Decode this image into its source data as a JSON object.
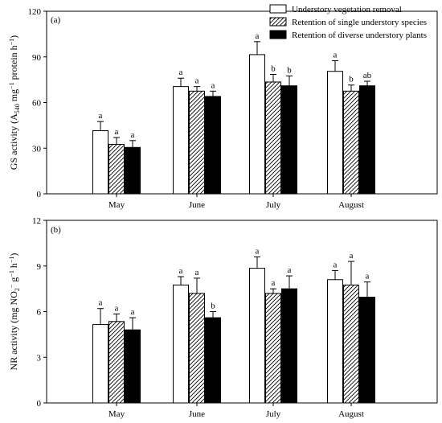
{
  "legend": {
    "items": [
      {
        "label": "Understory vegetation removal",
        "pattern": "open"
      },
      {
        "label": "Retention of single understory species",
        "pattern": "hatched"
      },
      {
        "label": "Retention of diverse understory plants",
        "pattern": "solid"
      }
    ],
    "placement": "top-right"
  },
  "chart_data": [
    {
      "type": "bar",
      "panel_label": "(a)",
      "ylabel_main": "GS activity (A",
      "ylabel_sub": "540",
      "ylabel_rest": " mg",
      "ylabel_sup": "−1",
      "ylabel_tail": " protein h",
      "ylabel_sup2": "−1",
      "ylabel_close": ")",
      "categories": [
        "May",
        "June",
        "July",
        "August"
      ],
      "ylim": [
        0,
        120
      ],
      "yticks": [
        0,
        30,
        60,
        90,
        120
      ],
      "series": [
        {
          "name": "Understory vegetation removal",
          "values": [
            41.5,
            70.5,
            91.5,
            80.5
          ],
          "errors": [
            6.0,
            5.5,
            8.5,
            7.0
          ],
          "letters": [
            "a",
            "a",
            "a",
            "a"
          ]
        },
        {
          "name": "Retention of single understory species",
          "values": [
            32.5,
            67.5,
            73.5,
            67.5
          ],
          "errors": [
            4.5,
            3.0,
            5.0,
            4.0
          ],
          "letters": [
            "a",
            "a",
            "b",
            "b"
          ]
        },
        {
          "name": "Retention of diverse understory plants",
          "values": [
            30.5,
            64.0,
            71.0,
            71.0
          ],
          "errors": [
            4.5,
            3.5,
            6.5,
            3.0
          ],
          "letters": [
            "a",
            "a",
            "b",
            "ab"
          ]
        }
      ]
    },
    {
      "type": "bar",
      "panel_label": "(b)",
      "ylabel_main": "NR activity (mg NO",
      "ylabel_sub": "2",
      "ylabel_sup": "−",
      "ylabel_rest": " g",
      "ylabel_sup2": "−1",
      "ylabel_tail": " h",
      "ylabel_sup3": "−1",
      "ylabel_close": ")",
      "categories": [
        "May",
        "June",
        "July",
        "August"
      ],
      "ylim": [
        0,
        12
      ],
      "yticks": [
        0,
        3,
        6,
        9,
        12
      ],
      "series": [
        {
          "name": "Understory vegetation removal",
          "values": [
            5.15,
            7.75,
            8.85,
            8.1
          ],
          "errors": [
            1.05,
            0.55,
            0.75,
            0.6
          ],
          "letters": [
            "a",
            "a",
            "a",
            "a"
          ]
        },
        {
          "name": "Retention of single understory species",
          "values": [
            5.35,
            7.2,
            7.2,
            7.75
          ],
          "errors": [
            0.5,
            1.0,
            0.3,
            1.55
          ],
          "letters": [
            "a",
            "a",
            "a",
            "a"
          ]
        },
        {
          "name": "Retention of diverse understory plants",
          "values": [
            4.8,
            5.6,
            7.5,
            6.95
          ],
          "errors": [
            0.8,
            0.4,
            0.85,
            1.0
          ],
          "letters": [
            "a",
            "b",
            "a",
            "a"
          ]
        }
      ]
    }
  ]
}
